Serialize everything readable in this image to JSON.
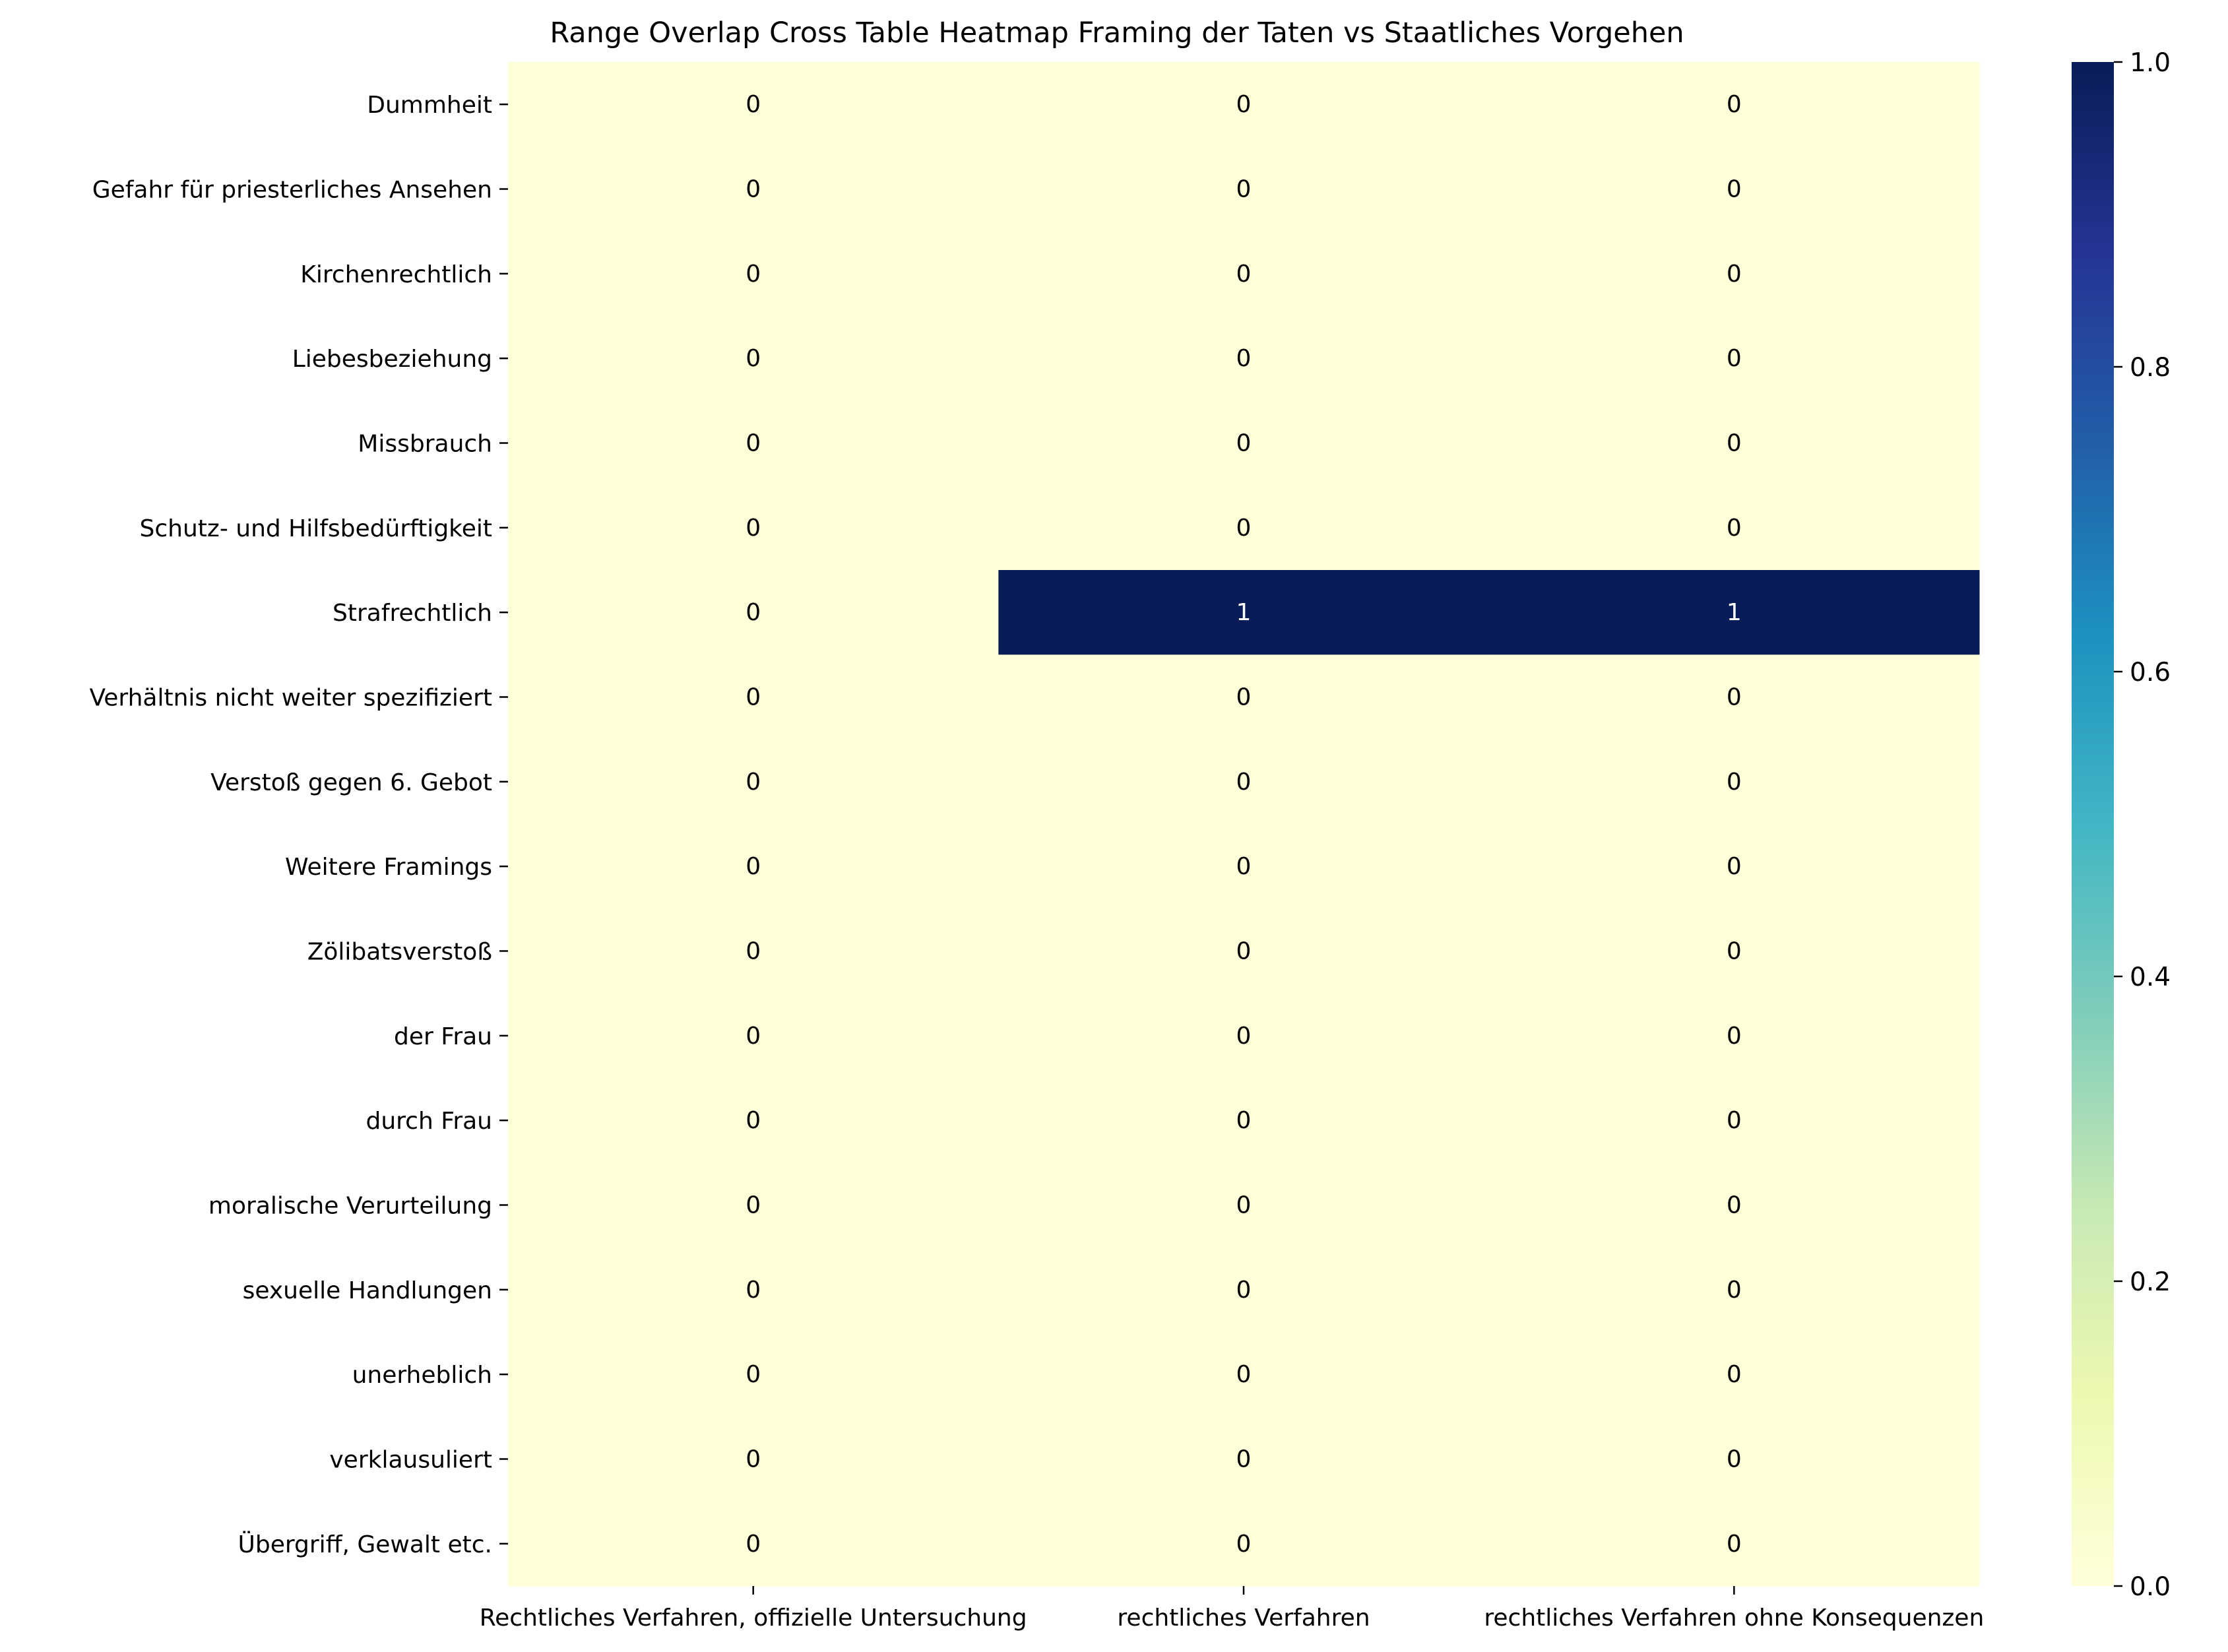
{
  "chart_data": {
    "type": "heatmap",
    "title": "Range Overlap Cross Table Heatmap Framing der Taten vs Staatliches Vorgehen",
    "xlabel": "",
    "ylabel": "",
    "columns": [
      "Rechtliches Verfahren, offizielle Untersuchung",
      "rechtliches Verfahren",
      "rechtliches Verfahren ohne Konsequenzen"
    ],
    "rows": [
      "Dummheit",
      "Gefahr für priesterliches Ansehen",
      "Kirchenrechtlich",
      "Liebesbeziehung",
      "Missbrauch",
      "Schutz- und Hilfsbedürftigkeit",
      "Strafrechtlich",
      "Verhältnis nicht weiter spezifiziert",
      "Verstoß gegen 6. Gebot",
      "Weitere Framings",
      "Zölibatsverstoß",
      "der Frau",
      "durch Frau",
      "moralische Verurteilung",
      "sexuelle Handlungen",
      "unerheblich",
      "verklausuliert",
      "Übergriff, Gewalt etc."
    ],
    "values": [
      [
        0,
        0,
        0
      ],
      [
        0,
        0,
        0
      ],
      [
        0,
        0,
        0
      ],
      [
        0,
        0,
        0
      ],
      [
        0,
        0,
        0
      ],
      [
        0,
        0,
        0
      ],
      [
        0,
        1,
        1
      ],
      [
        0,
        0,
        0
      ],
      [
        0,
        0,
        0
      ],
      [
        0,
        0,
        0
      ],
      [
        0,
        0,
        0
      ],
      [
        0,
        0,
        0
      ],
      [
        0,
        0,
        0
      ],
      [
        0,
        0,
        0
      ],
      [
        0,
        0,
        0
      ],
      [
        0,
        0,
        0
      ],
      [
        0,
        0,
        0
      ],
      [
        0,
        0,
        0
      ]
    ],
    "colorbar": {
      "colormap": "YlGnBu",
      "vmin": 0.0,
      "vmax": 1.0,
      "ticks": [
        "0.0",
        "0.2",
        "0.4",
        "0.6",
        "0.8",
        "1.0"
      ]
    },
    "grid": false,
    "annotations": true
  }
}
